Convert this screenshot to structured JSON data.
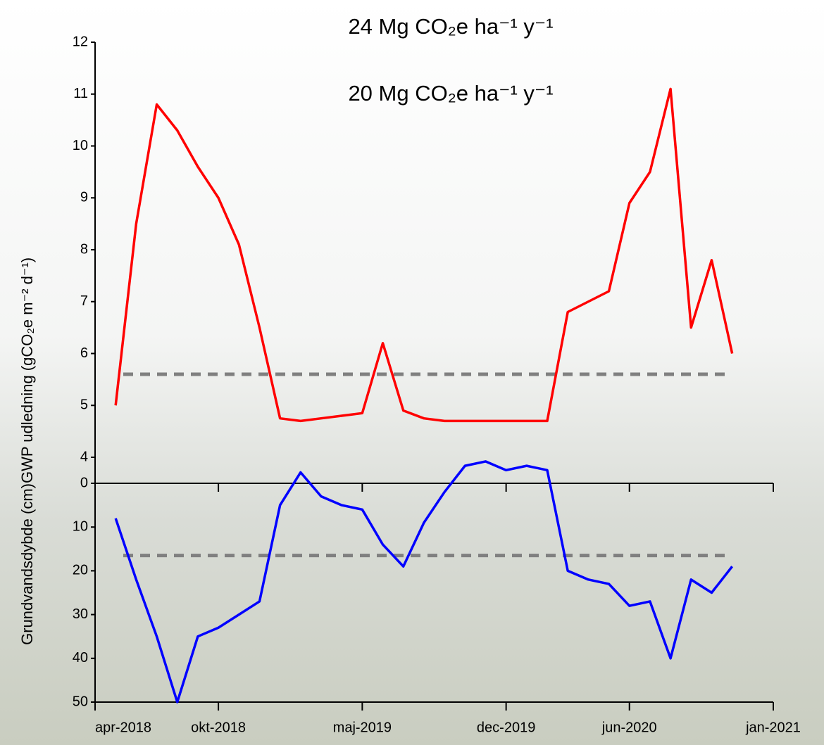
{
  "chart_data": [
    {
      "type": "line",
      "annotations": [
        "24 Mg CO₂e ha⁻¹ y⁻¹",
        "20 Mg CO₂e ha⁻¹ y⁻¹"
      ],
      "annotation_colors": [
        "#ff0000",
        "#808080"
      ],
      "ylabel": "GWP udledning (gCO₂e m⁻² d⁻¹)",
      "x": [
        "2018-05",
        "2018-06",
        "2018-07",
        "2018-08",
        "2018-09",
        "2018-10",
        "2018-11",
        "2018-12",
        "2019-01",
        "2019-02",
        "2019-03",
        "2019-04",
        "2019-05",
        "2019-06",
        "2019-07",
        "2019-08",
        "2019-09",
        "2019-10",
        "2019-11",
        "2019-12",
        "2020-01",
        "2020-02",
        "2020-03",
        "2020-04",
        "2020-05",
        "2020-06",
        "2020-07",
        "2020-08",
        "2020-09",
        "2020-10",
        "2020-11"
      ],
      "series": [
        {
          "color": "#ff0000",
          "values": [
            5.0,
            8.5,
            10.8,
            10.3,
            9.6,
            9.0,
            8.1,
            6.5,
            4.75,
            4.7,
            4.75,
            4.8,
            4.85,
            6.2,
            4.9,
            4.75,
            4.7,
            4.7,
            4.7,
            4.7,
            4.7,
            4.7,
            6.8,
            7.0,
            7.2,
            8.9,
            9.5,
            11.1,
            6.5,
            7.8,
            6.0
          ]
        }
      ],
      "threshold": 5.6,
      "threshold_color": "#808080",
      "xlim": [
        "2018-04",
        "2021-01"
      ],
      "ylim": [
        4,
        12
      ],
      "yticks": [
        4,
        5,
        6,
        7,
        8,
        9,
        10,
        11,
        12
      ]
    },
    {
      "type": "line",
      "ylabel": "Grundvandsdybde (cm)",
      "x": [
        "2018-05",
        "2018-06",
        "2018-07",
        "2018-08",
        "2018-09",
        "2018-10",
        "2018-11",
        "2018-12",
        "2019-01",
        "2019-02",
        "2019-03",
        "2019-04",
        "2019-05",
        "2019-06",
        "2019-07",
        "2019-08",
        "2019-09",
        "2019-10",
        "2019-11",
        "2019-12",
        "2020-01",
        "2020-02",
        "2020-03",
        "2020-04",
        "2020-05",
        "2020-06",
        "2020-07",
        "2020-08",
        "2020-09",
        "2020-10",
        "2020-11"
      ],
      "series": [
        {
          "color": "#0000ff",
          "values": [
            8,
            22,
            35,
            50,
            35,
            33,
            30,
            27,
            5,
            -2.5,
            3,
            5,
            6,
            14,
            19,
            9,
            2,
            -4,
            -5,
            -3,
            -4,
            -3,
            20,
            22,
            23,
            28,
            27,
            40,
            22,
            25,
            19
          ]
        }
      ],
      "threshold": 16.5,
      "threshold_color": "#808080",
      "xlim": [
        "2018-04",
        "2021-01"
      ],
      "ylim": [
        50,
        0
      ],
      "yticks": [
        0,
        10,
        20,
        30,
        40,
        50
      ],
      "xticks": [
        {
          "value": "2018-04",
          "label": "apr-2018"
        },
        {
          "value": "2018-10",
          "label": "okt-2018"
        },
        {
          "value": "2019-05",
          "label": "maj-2019"
        },
        {
          "value": "2019-12",
          "label": "dec-2019"
        },
        {
          "value": "2020-06",
          "label": "jun-2020"
        },
        {
          "value": "2021-01",
          "label": "jan-2021"
        }
      ]
    }
  ]
}
